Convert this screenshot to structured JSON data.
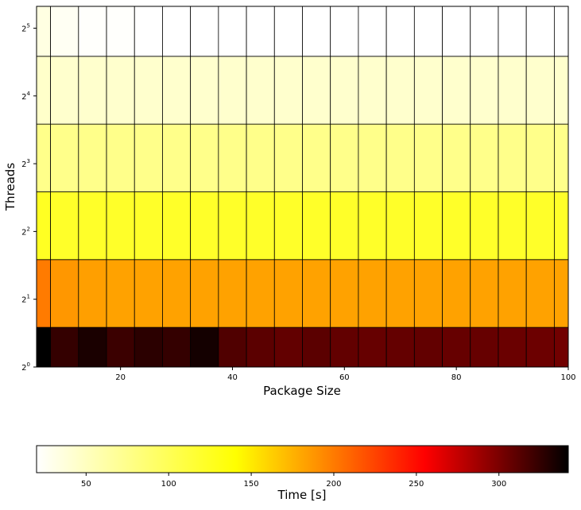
{
  "chart_data": {
    "type": "heatmap",
    "xlabel": "Package Size",
    "ylabel": "Threads",
    "x_ticks": [
      20,
      40,
      60,
      80,
      100
    ],
    "xlim": [
      5,
      100
    ],
    "y_scale": "log2",
    "y_tick_labels": [
      {
        "base": "2",
        "exp": "0"
      },
      {
        "base": "2",
        "exp": "1"
      },
      {
        "base": "2",
        "exp": "2"
      },
      {
        "base": "2",
        "exp": "3"
      },
      {
        "base": "2",
        "exp": "4"
      },
      {
        "base": "2",
        "exp": "5"
      }
    ],
    "ylim": [
      1,
      40
    ],
    "x_edges": [
      5,
      7.5,
      12.5,
      17.5,
      22.5,
      27.5,
      32.5,
      37.5,
      42.5,
      47.5,
      52.5,
      57.5,
      62.5,
      67.5,
      72.5,
      77.5,
      82.5,
      87.5,
      92.5,
      97.5,
      100
    ],
    "y_edges": [
      1,
      1.5,
      3,
      6,
      12,
      24,
      40
    ],
    "values": [
      [
        342,
        318,
        330,
        315,
        322,
        318,
        333,
        305,
        300,
        297,
        300,
        297,
        295,
        296,
        297,
        295,
        295,
        293,
        292,
        290
      ],
      [
        168,
        155,
        151,
        150,
        150,
        150,
        150,
        150,
        150,
        150,
        150,
        150,
        150,
        150,
        150,
        150,
        150,
        150,
        150,
        150
      ],
      [
        95,
        93,
        93,
        93,
        93,
        93,
        93,
        93,
        93,
        93,
        93,
        93,
        93,
        93,
        93,
        93,
        93,
        93,
        93,
        93
      ],
      [
        60,
        60,
        60,
        60,
        60,
        60,
        60,
        60,
        60,
        60,
        60,
        60,
        60,
        60,
        60,
        60,
        60,
        60,
        60,
        60
      ],
      [
        38,
        37,
        37,
        37,
        37,
        37,
        37,
        37,
        37,
        37,
        37,
        37,
        37,
        37,
        37,
        37,
        37,
        37,
        37,
        37
      ],
      [
        30,
        24,
        21,
        21,
        20,
        20,
        20,
        20,
        20,
        20,
        20,
        20,
        20,
        20,
        20,
        20,
        20,
        20,
        20,
        20
      ]
    ],
    "colormap": "hot_r",
    "colorbar": {
      "label": "Time [s]",
      "range": [
        20,
        342
      ],
      "ticks": [
        50,
        100,
        150,
        200,
        250,
        300
      ],
      "orientation": "horizontal"
    },
    "grid": false,
    "cell_edge_color": "#000000"
  }
}
